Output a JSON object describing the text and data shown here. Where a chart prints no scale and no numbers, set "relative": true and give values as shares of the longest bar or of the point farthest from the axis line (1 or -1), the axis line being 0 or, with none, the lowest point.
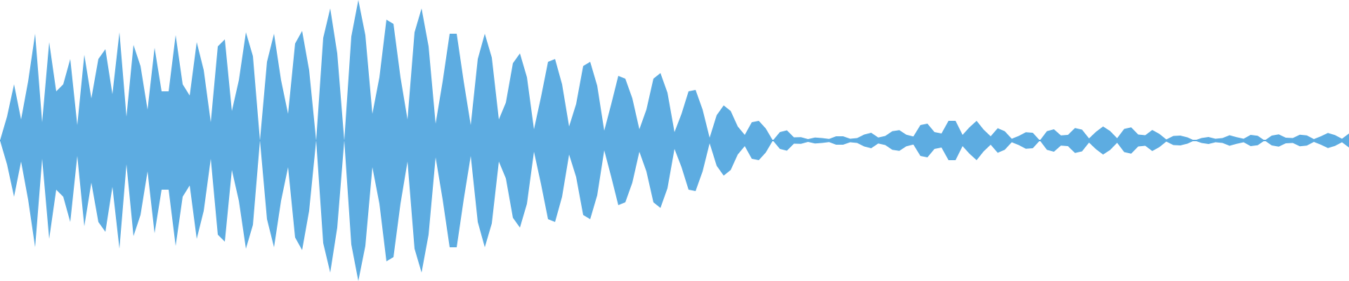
{
  "chart_data": {
    "type": "area",
    "relative": true,
    "categories": [
      null,
      null,
      null,
      null,
      null,
      null,
      null,
      null,
      null,
      null,
      null,
      null,
      null,
      null,
      null,
      null,
      null,
      null,
      null,
      null,
      null,
      null,
      null,
      null,
      null,
      null,
      null,
      null,
      null,
      null,
      null,
      null,
      null,
      null,
      null,
      null,
      null,
      null,
      null,
      null,
      null,
      null,
      null,
      null,
      null,
      null,
      null,
      null,
      null,
      null,
      null,
      null,
      null,
      null,
      null,
      null,
      null,
      null,
      null,
      null,
      null,
      null,
      null,
      null,
      null,
      null,
      null,
      null,
      null,
      null,
      null,
      null,
      null,
      null,
      null,
      null,
      null,
      null,
      null,
      null,
      null,
      null,
      null,
      null,
      null,
      null,
      null,
      null,
      null,
      null,
      null,
      null,
      null,
      null,
      null,
      null,
      null,
      null,
      null,
      null,
      null,
      null,
      null,
      null,
      null,
      null,
      null,
      null,
      null,
      null,
      null,
      null,
      null,
      null,
      null,
      null,
      null,
      null,
      null,
      null,
      null,
      null,
      null,
      null,
      null,
      null,
      null,
      null,
      null,
      null,
      null,
      null,
      null,
      null,
      null,
      null,
      null,
      null,
      null,
      null,
      null,
      null,
      null,
      null,
      null,
      null,
      null,
      null,
      null,
      null,
      null,
      null,
      null,
      null,
      null,
      null,
      null,
      null,
      null,
      null,
      null,
      null,
      null,
      null,
      null,
      null,
      null,
      null,
      null,
      null,
      null,
      null,
      null,
      null,
      null,
      null,
      null,
      null,
      null,
      null,
      null,
      null,
      null,
      null,
      null,
      null,
      null,
      null,
      null,
      null,
      null,
      null,
      null
    ],
    "series": [
      {
        "color": "#5dace1",
        "values": [
          0,
          0.17,
          0.4,
          0.15,
          0.42,
          0.76,
          0.13,
          0.7,
          0.35,
          0.4,
          0.58,
          0.11,
          0.61,
          0.3,
          0.58,
          0.65,
          0.33,
          0.77,
          0.17,
          0.68,
          0.53,
          0.22,
          0.66,
          0.35,
          0.35,
          0.75,
          0.4,
          0.32,
          0.7,
          0.5,
          0.13,
          0.67,
          0.72,
          0.21,
          0.43,
          0.77,
          0.6,
          0,
          0.56,
          0.76,
          0.43,
          0.19,
          0.69,
          0.78,
          0.5,
          0,
          0.73,
          0.94,
          0.62,
          0,
          0.74,
          1,
          0.75,
          0.19,
          0.45,
          0.86,
          0.83,
          0.45,
          0.15,
          0.77,
          0.94,
          0.67,
          0.12,
          0.42,
          0.76,
          0.76,
          0.42,
          0.11,
          0.58,
          0.76,
          0.59,
          0.15,
          0.27,
          0.55,
          0.62,
          0.45,
          0.08,
          0.31,
          0.56,
          0.58,
          0.4,
          0.1,
          0.26,
          0.53,
          0.56,
          0.39,
          0.07,
          0.26,
          0.46,
          0.44,
          0.3,
          0.08,
          0.22,
          0.44,
          0.48,
          0.34,
          0.06,
          0.19,
          0.35,
          0.36,
          0.22,
          0.02,
          0.18,
          0.25,
          0.21,
          0.1,
          0.04,
          0.13,
          0.14,
          0.085,
          0,
          0.06,
          0.072,
          0.022,
          0.024,
          0.01,
          0.021,
          0.018,
          0.011,
          0.03,
          0.03,
          0.013,
          0.017,
          0.043,
          0.055,
          0.021,
          0.032,
          0.066,
          0.074,
          0.041,
          0.029,
          0.11,
          0.12,
          0.06,
          0.05,
          0.14,
          0.14,
          0.04,
          0.095,
          0.14,
          0.077,
          0.03,
          0.087,
          0.066,
          0.012,
          0.033,
          0.059,
          0.055,
          0,
          0.066,
          0.08,
          0.036,
          0.04,
          0.089,
          0.078,
          0.015,
          0.062,
          0.1,
          0.068,
          0.016,
          0.082,
          0.094,
          0.042,
          0.038,
          0.075,
          0.048,
          0.007,
          0.033,
          0.035,
          0.022,
          0,
          0.018,
          0.025,
          0.013,
          0.017,
          0.037,
          0.024,
          0.012,
          0.04,
          0.034,
          0,
          0.035,
          0.044,
          0.02,
          0.018,
          0.041,
          0.036,
          0.01,
          0.03,
          0.054,
          0.039,
          0.013,
          0.05
        ]
      },
      {
        "color": "#5dace1",
        "values": [
          0,
          -0.17,
          -0.4,
          -0.15,
          -0.42,
          -0.76,
          -0.13,
          -0.7,
          -0.35,
          -0.4,
          -0.58,
          -0.11,
          -0.61,
          -0.3,
          -0.58,
          -0.65,
          -0.33,
          -0.77,
          -0.17,
          -0.68,
          -0.53,
          -0.22,
          -0.66,
          -0.35,
          -0.35,
          -0.75,
          -0.4,
          -0.32,
          -0.7,
          -0.5,
          -0.13,
          -0.67,
          -0.72,
          -0.21,
          -0.43,
          -0.77,
          -0.6,
          0,
          -0.56,
          -0.76,
          -0.43,
          -0.19,
          -0.69,
          -0.78,
          -0.5,
          0,
          -0.73,
          -0.94,
          -0.62,
          0,
          -0.74,
          -1,
          -0.75,
          -0.19,
          -0.45,
          -0.86,
          -0.83,
          -0.45,
          -0.15,
          -0.77,
          -0.94,
          -0.67,
          -0.12,
          -0.42,
          -0.76,
          -0.76,
          -0.42,
          -0.11,
          -0.58,
          -0.76,
          -0.59,
          -0.15,
          -0.27,
          -0.55,
          -0.62,
          -0.45,
          -0.08,
          -0.31,
          -0.56,
          -0.58,
          -0.4,
          -0.1,
          -0.26,
          -0.53,
          -0.56,
          -0.39,
          -0.07,
          -0.26,
          -0.46,
          -0.44,
          -0.3,
          -0.08,
          -0.22,
          -0.44,
          -0.48,
          -0.34,
          -0.06,
          -0.19,
          -0.35,
          -0.36,
          -0.22,
          -0.02,
          -0.18,
          -0.25,
          -0.21,
          -0.1,
          -0.04,
          -0.13,
          -0.14,
          -0.085,
          0,
          -0.06,
          -0.072,
          -0.022,
          -0.024,
          -0.01,
          -0.021,
          -0.018,
          -0.011,
          -0.03,
          -0.03,
          -0.013,
          -0.017,
          -0.043,
          -0.055,
          -0.021,
          -0.032,
          -0.066,
          -0.074,
          -0.041,
          -0.029,
          -0.11,
          -0.12,
          -0.06,
          -0.05,
          -0.14,
          -0.14,
          -0.04,
          -0.095,
          -0.14,
          -0.077,
          -0.03,
          -0.087,
          -0.066,
          -0.012,
          -0.033,
          -0.059,
          -0.055,
          0,
          -0.066,
          -0.08,
          -0.036,
          -0.04,
          -0.089,
          -0.078,
          -0.015,
          -0.062,
          -0.1,
          -0.068,
          -0.016,
          -0.082,
          -0.094,
          -0.042,
          -0.038,
          -0.075,
          -0.048,
          -0.007,
          -0.033,
          -0.035,
          -0.022,
          0,
          -0.018,
          -0.025,
          -0.013,
          -0.017,
          -0.037,
          -0.024,
          -0.012,
          -0.04,
          -0.034,
          0,
          -0.035,
          -0.044,
          -0.02,
          -0.018,
          -0.041,
          -0.036,
          -0.01,
          -0.03,
          -0.054,
          -0.039,
          -0.013,
          -0.05
        ]
      }
    ]
  }
}
